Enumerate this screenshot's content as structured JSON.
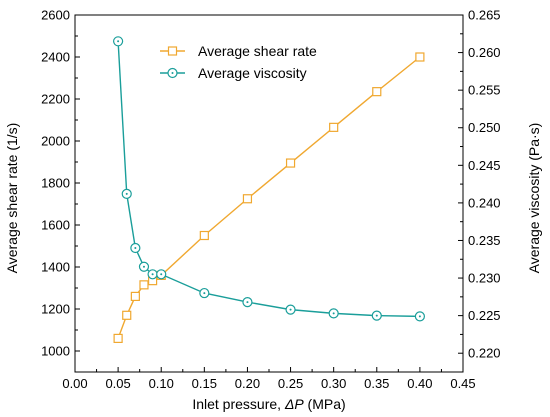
{
  "chart_data": {
    "type": "line",
    "xlabel_prefix": "Inlet pressure, ",
    "xlabel_symbol": "ΔP",
    "xlabel_suffix": " (MPa)",
    "ylabel_left": "Average shear rate (1/s)",
    "ylabel_right": "Average viscosity (Pa·s)",
    "xlim": [
      0.0,
      0.45
    ],
    "ylim_left": [
      900,
      2600
    ],
    "ylim_right": [
      0.2175,
      0.265
    ],
    "x_ticks": [
      "0.00",
      "0.05",
      "0.10",
      "0.15",
      "0.20",
      "0.25",
      "0.30",
      "0.35",
      "0.40",
      "0.45"
    ],
    "y_left_ticks": [
      "1000",
      "1200",
      "1400",
      "1600",
      "1800",
      "2000",
      "2200",
      "2400",
      "2600"
    ],
    "y_right_ticks": [
      "0.220",
      "0.225",
      "0.230",
      "0.235",
      "0.240",
      "0.245",
      "0.250",
      "0.255",
      "0.260",
      "0.265"
    ],
    "legend_position": "top-center",
    "grid": false,
    "series": [
      {
        "name": "Average shear rate",
        "axis": "left",
        "marker": "square",
        "color": "#f0a830",
        "x": [
          0.05,
          0.06,
          0.07,
          0.08,
          0.09,
          0.1,
          0.15,
          0.2,
          0.25,
          0.3,
          0.35,
          0.4
        ],
        "y": [
          1060,
          1170,
          1260,
          1315,
          1335,
          1360,
          1550,
          1725,
          1895,
          2065,
          2235,
          2400
        ]
      },
      {
        "name": "Average viscosity",
        "axis": "right",
        "marker": "circle",
        "color": "#1a9e9a",
        "x": [
          0.05,
          0.06,
          0.07,
          0.08,
          0.09,
          0.1,
          0.15,
          0.2,
          0.25,
          0.3,
          0.35,
          0.4
        ],
        "y": [
          0.2615,
          0.2412,
          0.234,
          0.2315,
          0.2305,
          0.2305,
          0.228,
          0.2268,
          0.2258,
          0.2253,
          0.225,
          0.2249
        ]
      }
    ]
  }
}
